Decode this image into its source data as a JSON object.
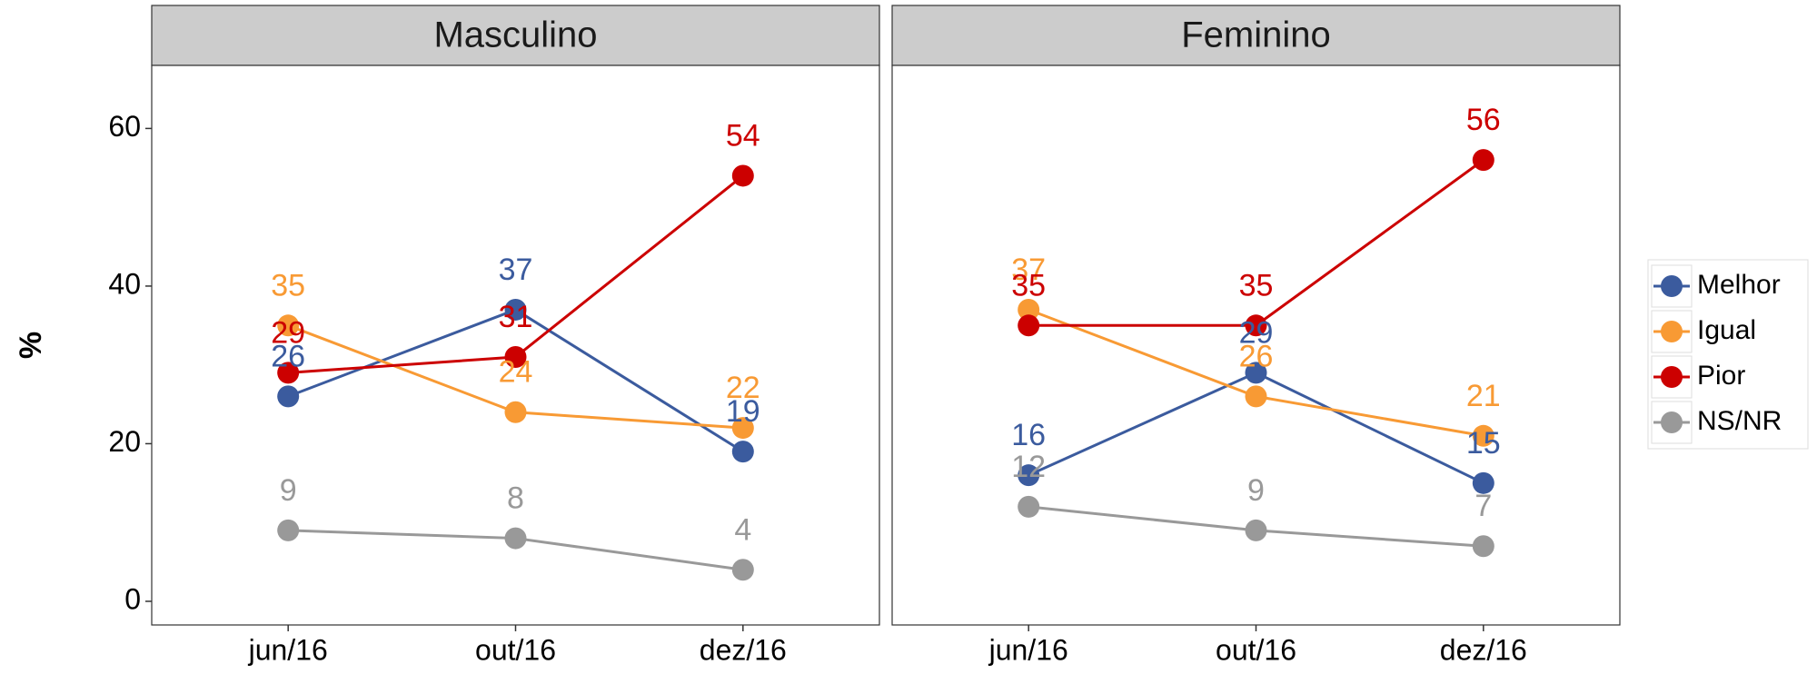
{
  "chart_data": [
    {
      "type": "line",
      "title": "Masculino",
      "y_label": "%",
      "legend": "right",
      "categories": [
        "jun/16",
        "out/16",
        "dez/16"
      ],
      "ylim": [
        -3,
        68
      ],
      "yticks": [
        0,
        20,
        40,
        60
      ],
      "series": [
        {
          "name": "Melhor",
          "color": "#3b5b9e",
          "values": [
            26,
            37,
            19
          ]
        },
        {
          "name": "Igual",
          "color": "#f89a34",
          "values": [
            35,
            24,
            22
          ]
        },
        {
          "name": "Pior",
          "color": "#cc0000",
          "values": [
            29,
            31,
            54
          ]
        },
        {
          "name": "NS/NR",
          "color": "#999999",
          "values": [
            9,
            8,
            4
          ]
        }
      ]
    },
    {
      "type": "line",
      "title": "Feminino",
      "categories": [
        "jun/16",
        "out/16",
        "dez/16"
      ],
      "ylim": [
        -3,
        68
      ],
      "series": [
        {
          "name": "Melhor",
          "color": "#3b5b9e",
          "values": [
            16,
            29,
            15
          ]
        },
        {
          "name": "Igual",
          "color": "#f89a34",
          "values": [
            37,
            26,
            21
          ]
        },
        {
          "name": "Pior",
          "color": "#cc0000",
          "values": [
            35,
            35,
            56
          ]
        },
        {
          "name": "NS/NR",
          "color": "#999999",
          "values": [
            12,
            9,
            7
          ]
        }
      ]
    }
  ]
}
